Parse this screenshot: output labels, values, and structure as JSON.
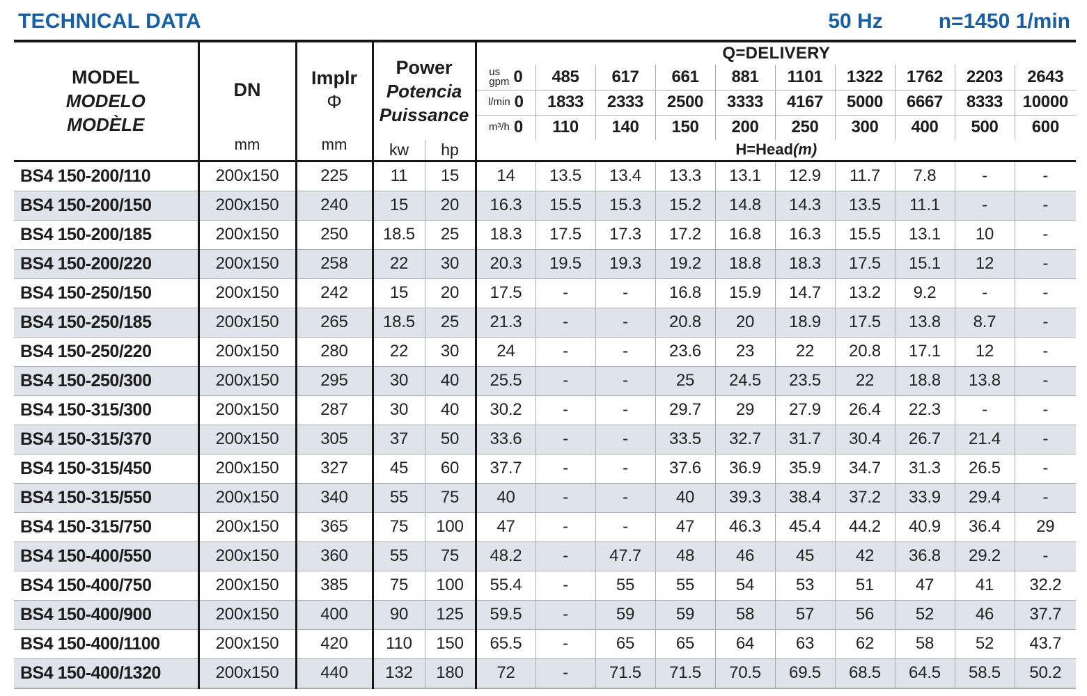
{
  "colors": {
    "accent_blue": "#175fa4",
    "row_stripe": "#dee4e9",
    "grid_dark": "#161616",
    "grid_light": "#a6adb3"
  },
  "header": {
    "title": "TECHNICAL DATA",
    "frequency": "50 Hz",
    "speed": "n=1450 1/min"
  },
  "table": {
    "model_header": [
      "MODEL",
      "MODELO",
      "MODÈLE"
    ],
    "dn_header": {
      "label": "DN",
      "unit": "mm"
    },
    "impeller_header": {
      "label": "Implr",
      "symbol": "Φ",
      "unit": "mm"
    },
    "power_header": {
      "lines": [
        "Power",
        "Potencia",
        "Puissance"
      ],
      "units": [
        "kw",
        "hp"
      ]
    },
    "delivery": {
      "title": "Q=DELIVERY",
      "head_label": "H=Head",
      "head_unit": "(m)",
      "unit_rows": [
        {
          "key": "us-gpm",
          "label_lines": [
            "us",
            "gpm"
          ],
          "zero": "0",
          "values": [
            "485",
            "617",
            "661",
            "881",
            "1101",
            "1322",
            "1762",
            "2203",
            "2643"
          ]
        },
        {
          "key": "l-min",
          "label_lines": [
            "l/min"
          ],
          "zero": "0",
          "values": [
            "1833",
            "2333",
            "2500",
            "3333",
            "4167",
            "5000",
            "6667",
            "8333",
            "10000"
          ]
        },
        {
          "key": "m3-h",
          "label_lines": [
            "m³/h"
          ],
          "zero": "0",
          "values": [
            "110",
            "140",
            "150",
            "200",
            "250",
            "300",
            "400",
            "500",
            "600"
          ]
        }
      ]
    },
    "rows": [
      {
        "model": "BS4 150-200/110",
        "dn": "200x150",
        "impeller": "225",
        "kw": "11",
        "hp": "15",
        "heads": [
          "14",
          "13.5",
          "13.4",
          "13.3",
          "13.1",
          "12.9",
          "11.7",
          "7.8",
          "-",
          "-"
        ]
      },
      {
        "model": "BS4 150-200/150",
        "dn": "200x150",
        "impeller": "240",
        "kw": "15",
        "hp": "20",
        "heads": [
          "16.3",
          "15.5",
          "15.3",
          "15.2",
          "14.8",
          "14.3",
          "13.5",
          "11.1",
          "-",
          "-"
        ]
      },
      {
        "model": "BS4 150-200/185",
        "dn": "200x150",
        "impeller": "250",
        "kw": "18.5",
        "hp": "25",
        "heads": [
          "18.3",
          "17.5",
          "17.3",
          "17.2",
          "16.8",
          "16.3",
          "15.5",
          "13.1",
          "10",
          "-"
        ]
      },
      {
        "model": "BS4 150-200/220",
        "dn": "200x150",
        "impeller": "258",
        "kw": "22",
        "hp": "30",
        "heads": [
          "20.3",
          "19.5",
          "19.3",
          "19.2",
          "18.8",
          "18.3",
          "17.5",
          "15.1",
          "12",
          "-"
        ]
      },
      {
        "model": "BS4 150-250/150",
        "dn": "200x150",
        "impeller": "242",
        "kw": "15",
        "hp": "20",
        "heads": [
          "17.5",
          "-",
          "-",
          "16.8",
          "15.9",
          "14.7",
          "13.2",
          "9.2",
          "-",
          "-"
        ]
      },
      {
        "model": "BS4 150-250/185",
        "dn": "200x150",
        "impeller": "265",
        "kw": "18.5",
        "hp": "25",
        "heads": [
          "21.3",
          "-",
          "-",
          "20.8",
          "20",
          "18.9",
          "17.5",
          "13.8",
          "8.7",
          "-"
        ]
      },
      {
        "model": "BS4 150-250/220",
        "dn": "200x150",
        "impeller": "280",
        "kw": "22",
        "hp": "30",
        "heads": [
          "24",
          "-",
          "-",
          "23.6",
          "23",
          "22",
          "20.8",
          "17.1",
          "12",
          "-"
        ]
      },
      {
        "model": "BS4 150-250/300",
        "dn": "200x150",
        "impeller": "295",
        "kw": "30",
        "hp": "40",
        "heads": [
          "25.5",
          "-",
          "-",
          "25",
          "24.5",
          "23.5",
          "22",
          "18.8",
          "13.8",
          "-"
        ]
      },
      {
        "model": "BS4 150-315/300",
        "dn": "200x150",
        "impeller": "287",
        "kw": "30",
        "hp": "40",
        "heads": [
          "30.2",
          "-",
          "-",
          "29.7",
          "29",
          "27.9",
          "26.4",
          "22.3",
          "-",
          "-"
        ]
      },
      {
        "model": "BS4 150-315/370",
        "dn": "200x150",
        "impeller": "305",
        "kw": "37",
        "hp": "50",
        "heads": [
          "33.6",
          "-",
          "-",
          "33.5",
          "32.7",
          "31.7",
          "30.4",
          "26.7",
          "21.4",
          "-"
        ]
      },
      {
        "model": "BS4 150-315/450",
        "dn": "200x150",
        "impeller": "327",
        "kw": "45",
        "hp": "60",
        "heads": [
          "37.7",
          "-",
          "-",
          "37.6",
          "36.9",
          "35.9",
          "34.7",
          "31.3",
          "26.5",
          "-"
        ]
      },
      {
        "model": "BS4 150-315/550",
        "dn": "200x150",
        "impeller": "340",
        "kw": "55",
        "hp": "75",
        "heads": [
          "40",
          "-",
          "-",
          "40",
          "39.3",
          "38.4",
          "37.2",
          "33.9",
          "29.4",
          "-"
        ]
      },
      {
        "model": "BS4 150-315/750",
        "dn": "200x150",
        "impeller": "365",
        "kw": "75",
        "hp": "100",
        "heads": [
          "47",
          "-",
          "-",
          "47",
          "46.3",
          "45.4",
          "44.2",
          "40.9",
          "36.4",
          "29"
        ]
      },
      {
        "model": "BS4 150-400/550",
        "dn": "200x150",
        "impeller": "360",
        "kw": "55",
        "hp": "75",
        "heads": [
          "48.2",
          "-",
          "47.7",
          "48",
          "46",
          "45",
          "42",
          "36.8",
          "29.2",
          "-"
        ]
      },
      {
        "model": "BS4 150-400/750",
        "dn": "200x150",
        "impeller": "385",
        "kw": "75",
        "hp": "100",
        "heads": [
          "55.4",
          "-",
          "55",
          "55",
          "54",
          "53",
          "51",
          "47",
          "41",
          "32.2"
        ]
      },
      {
        "model": "BS4 150-400/900",
        "dn": "200x150",
        "impeller": "400",
        "kw": "90",
        "hp": "125",
        "heads": [
          "59.5",
          "-",
          "59",
          "59",
          "58",
          "57",
          "56",
          "52",
          "46",
          "37.7"
        ]
      },
      {
        "model": "BS4 150-400/1100",
        "dn": "200x150",
        "impeller": "420",
        "kw": "110",
        "hp": "150",
        "heads": [
          "65.5",
          "-",
          "65",
          "65",
          "64",
          "63",
          "62",
          "58",
          "52",
          "43.7"
        ]
      },
      {
        "model": "BS4 150-400/1320",
        "dn": "200x150",
        "impeller": "440",
        "kw": "132",
        "hp": "180",
        "heads": [
          "72",
          "-",
          "71.5",
          "71.5",
          "70.5",
          "69.5",
          "68.5",
          "64.5",
          "58.5",
          "50.2"
        ]
      }
    ]
  }
}
